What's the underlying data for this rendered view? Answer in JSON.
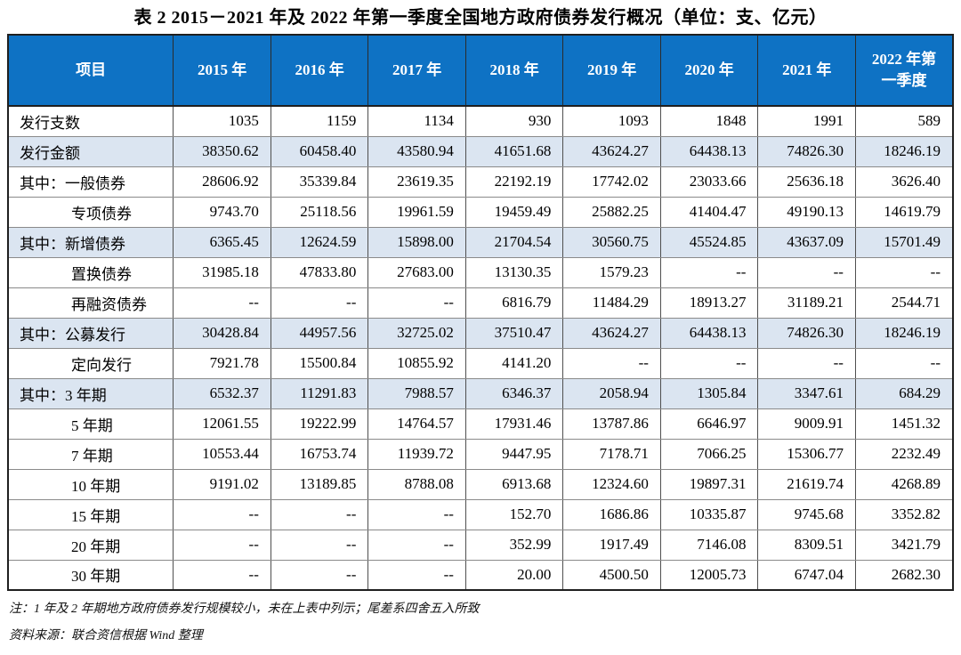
{
  "title": "表 2  2015－2021 年及 2022 年第一季度全国地方政府债券发行概况（单位：支、亿元）",
  "table": {
    "columns": [
      "项目",
      "2015 年",
      "2016 年",
      "2017 年",
      "2018 年",
      "2019 年",
      "2020 年",
      "2021 年",
      "2022 年第一季度"
    ],
    "rows": [
      {
        "label": "发行支数",
        "indent": false,
        "shaded": false,
        "values": [
          "1035",
          "1159",
          "1134",
          "930",
          "1093",
          "1848",
          "1991",
          "589"
        ]
      },
      {
        "label": "发行金额",
        "indent": false,
        "shaded": true,
        "values": [
          "38350.62",
          "60458.40",
          "43580.94",
          "41651.68",
          "43624.27",
          "64438.13",
          "74826.30",
          "18246.19"
        ]
      },
      {
        "label": "其中：一般债券",
        "indent": false,
        "shaded": false,
        "values": [
          "28606.92",
          "35339.84",
          "23619.35",
          "22192.19",
          "17742.02",
          "23033.66",
          "25636.18",
          "3626.40"
        ]
      },
      {
        "label": "专项债券",
        "indent": true,
        "shaded": false,
        "values": [
          "9743.70",
          "25118.56",
          "19961.59",
          "19459.49",
          "25882.25",
          "41404.47",
          "49190.13",
          "14619.79"
        ]
      },
      {
        "label": "其中：新增债券",
        "indent": false,
        "shaded": true,
        "values": [
          "6365.45",
          "12624.59",
          "15898.00",
          "21704.54",
          "30560.75",
          "45524.85",
          "43637.09",
          "15701.49"
        ]
      },
      {
        "label": "置换债券",
        "indent": true,
        "shaded": false,
        "values": [
          "31985.18",
          "47833.80",
          "27683.00",
          "13130.35",
          "1579.23",
          "--",
          "--",
          "--"
        ]
      },
      {
        "label": "再融资债券",
        "indent": true,
        "shaded": false,
        "values": [
          "--",
          "--",
          "--",
          "6816.79",
          "11484.29",
          "18913.27",
          "31189.21",
          "2544.71"
        ]
      },
      {
        "label": "其中：公募发行",
        "indent": false,
        "shaded": true,
        "values": [
          "30428.84",
          "44957.56",
          "32725.02",
          "37510.47",
          "43624.27",
          "64438.13",
          "74826.30",
          "18246.19"
        ]
      },
      {
        "label": "定向发行",
        "indent": true,
        "shaded": false,
        "values": [
          "7921.78",
          "15500.84",
          "10855.92",
          "4141.20",
          "--",
          "--",
          "--",
          "--"
        ]
      },
      {
        "label": "其中：3 年期",
        "indent": false,
        "shaded": true,
        "values": [
          "6532.37",
          "11291.83",
          "7988.57",
          "6346.37",
          "2058.94",
          "1305.84",
          "3347.61",
          "684.29"
        ]
      },
      {
        "label": "5 年期",
        "indent": true,
        "shaded": false,
        "values": [
          "12061.55",
          "19222.99",
          "14764.57",
          "17931.46",
          "13787.86",
          "6646.97",
          "9009.91",
          "1451.32"
        ]
      },
      {
        "label": "7 年期",
        "indent": true,
        "shaded": false,
        "values": [
          "10553.44",
          "16753.74",
          "11939.72",
          "9447.95",
          "7178.71",
          "7066.25",
          "15306.77",
          "2232.49"
        ]
      },
      {
        "label": "10 年期",
        "indent": true,
        "shaded": false,
        "values": [
          "9191.02",
          "13189.85",
          "8788.08",
          "6913.68",
          "12324.60",
          "19897.31",
          "21619.74",
          "4268.89"
        ]
      },
      {
        "label": "15 年期",
        "indent": true,
        "shaded": false,
        "values": [
          "--",
          "--",
          "--",
          "152.70",
          "1686.86",
          "10335.87",
          "9745.68",
          "3352.82"
        ]
      },
      {
        "label": "20 年期",
        "indent": true,
        "shaded": false,
        "values": [
          "--",
          "--",
          "--",
          "352.99",
          "1917.49",
          "7146.08",
          "8309.51",
          "3421.79"
        ]
      },
      {
        "label": "30 年期",
        "indent": true,
        "shaded": false,
        "values": [
          "--",
          "--",
          "--",
          "20.00",
          "4500.50",
          "12005.73",
          "6747.04",
          "2682.30"
        ]
      }
    ]
  },
  "notes": {
    "note": "注：1 年及 2 年期地方政府债券发行规模较小，未在上表中列示；尾差系四舍五入所致",
    "source": "资料来源：联合资信根据 Wind 整理"
  },
  "colors": {
    "header_bg": "#0e72c4",
    "header_text": "#ffffff",
    "shaded_row_bg": "#dbe5f1",
    "border_dark": "#1f1f1f"
  }
}
